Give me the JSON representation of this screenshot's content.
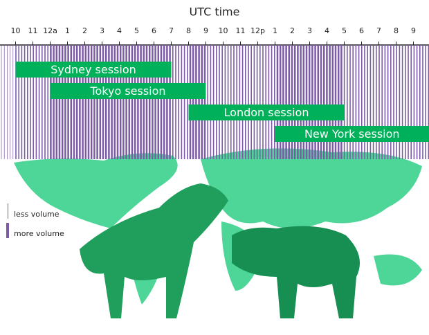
{
  "chart_data": {
    "type": "timeline",
    "title": "UTC time",
    "xlim": [
      21.1,
      45.9
    ],
    "xticks": [
      {
        "value": 22,
        "label": "10"
      },
      {
        "value": 23,
        "label": "11"
      },
      {
        "value": 24,
        "label": "12a"
      },
      {
        "value": 25,
        "label": "1"
      },
      {
        "value": 26,
        "label": "2"
      },
      {
        "value": 27,
        "label": "3"
      },
      {
        "value": 28,
        "label": "4"
      },
      {
        "value": 29,
        "label": "5"
      },
      {
        "value": 30,
        "label": "6"
      },
      {
        "value": 31,
        "label": "7"
      },
      {
        "value": 32,
        "label": "8"
      },
      {
        "value": 33,
        "label": "9"
      },
      {
        "value": 34,
        "label": "10"
      },
      {
        "value": 35,
        "label": "11"
      },
      {
        "value": 36,
        "label": "12p"
      },
      {
        "value": 37,
        "label": "1"
      },
      {
        "value": 38,
        "label": "2"
      },
      {
        "value": 39,
        "label": "3"
      },
      {
        "value": 40,
        "label": "4"
      },
      {
        "value": 41,
        "label": "5"
      },
      {
        "value": 42,
        "label": "6"
      },
      {
        "value": 43,
        "label": "7"
      },
      {
        "value": 44,
        "label": "8"
      },
      {
        "value": 45,
        "label": "9"
      }
    ],
    "sessions": [
      {
        "name": "Sydney session",
        "start": 22,
        "end": 31
      },
      {
        "name": "Tokyo session",
        "start": 24,
        "end": 33
      },
      {
        "name": "London session",
        "start": 32,
        "end": 41
      },
      {
        "name": "New York session",
        "start": 37,
        "end": 46
      }
    ],
    "color": "#00b15a",
    "stripe_color": "#7b5aa6",
    "legend": {
      "less": "less volume",
      "more": "more volume"
    }
  }
}
